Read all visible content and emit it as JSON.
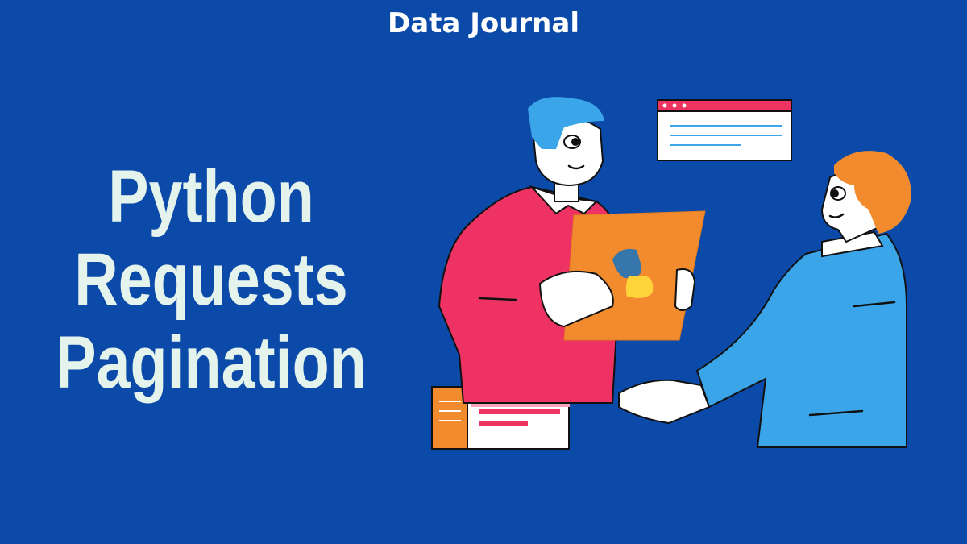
{
  "header": {
    "brand": "Data Journal"
  },
  "title": {
    "lines": [
      "Python",
      "Requests",
      "Pagination"
    ]
  }
}
